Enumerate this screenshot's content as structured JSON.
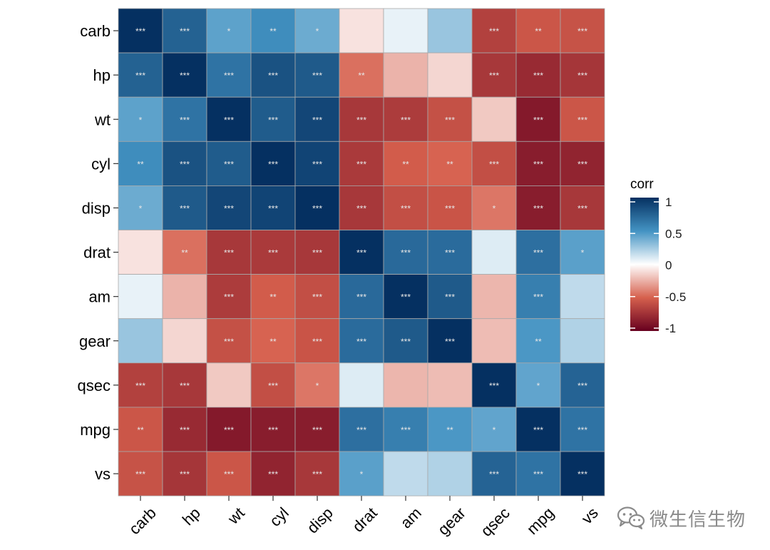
{
  "chart_data": {
    "type": "heatmap",
    "variables": [
      "carb",
      "hp",
      "wt",
      "cyl",
      "disp",
      "drat",
      "am",
      "gear",
      "qsec",
      "mpg",
      "vs"
    ],
    "values": [
      [
        1.0,
        0.75,
        0.43,
        0.53,
        0.39,
        -0.09,
        0.06,
        0.27,
        -0.66,
        -0.55,
        -0.57
      ],
      [
        0.75,
        1.0,
        0.66,
        0.83,
        0.79,
        -0.45,
        -0.24,
        -0.13,
        -0.71,
        -0.78,
        -0.72
      ],
      [
        0.43,
        0.66,
        1.0,
        0.78,
        0.89,
        -0.71,
        -0.69,
        -0.58,
        -0.17,
        -0.87,
        -0.55
      ],
      [
        0.53,
        0.83,
        0.78,
        1.0,
        0.9,
        -0.7,
        -0.52,
        -0.49,
        -0.59,
        -0.85,
        -0.81
      ],
      [
        0.39,
        0.79,
        0.89,
        0.9,
        1.0,
        -0.71,
        -0.59,
        -0.56,
        -0.43,
        -0.85,
        -0.71
      ],
      [
        -0.09,
        -0.45,
        -0.71,
        -0.7,
        -0.71,
        1.0,
        0.71,
        0.7,
        0.09,
        0.68,
        0.44
      ],
      [
        0.06,
        -0.24,
        -0.69,
        -0.52,
        -0.59,
        0.71,
        1.0,
        0.79,
        -0.23,
        0.6,
        0.17
      ],
      [
        0.27,
        -0.13,
        -0.58,
        -0.49,
        -0.56,
        0.7,
        0.79,
        1.0,
        -0.21,
        0.48,
        0.21
      ],
      [
        -0.66,
        -0.71,
        -0.17,
        -0.59,
        -0.43,
        0.09,
        -0.23,
        -0.21,
        1.0,
        0.42,
        0.74
      ],
      [
        -0.55,
        -0.78,
        -0.87,
        -0.85,
        -0.85,
        0.68,
        0.6,
        0.48,
        0.42,
        1.0,
        0.66
      ],
      [
        -0.57,
        -0.72,
        -0.55,
        -0.81,
        -0.71,
        0.44,
        0.17,
        0.21,
        0.74,
        0.66,
        1.0
      ]
    ],
    "significance": [
      [
        "***",
        "***",
        "*",
        "**",
        "*",
        "",
        "",
        "",
        "***",
        "**",
        "***"
      ],
      [
        "***",
        "***",
        "***",
        "***",
        "***",
        "**",
        "",
        "",
        "***",
        "***",
        "***"
      ],
      [
        "*",
        "***",
        "***",
        "***",
        "***",
        "***",
        "***",
        "***",
        "",
        "***",
        "***"
      ],
      [
        "**",
        "***",
        "***",
        "***",
        "***",
        "***",
        "**",
        "**",
        "***",
        "***",
        "***"
      ],
      [
        "*",
        "***",
        "***",
        "***",
        "***",
        "***",
        "***",
        "***",
        "*",
        "***",
        "***"
      ],
      [
        "",
        "**",
        "***",
        "***",
        "***",
        "***",
        "***",
        "***",
        "",
        "***",
        "*"
      ],
      [
        "",
        "",
        "***",
        "**",
        "***",
        "***",
        "***",
        "***",
        "",
        "***",
        ""
      ],
      [
        "",
        "",
        "***",
        "**",
        "***",
        "***",
        "***",
        "***",
        "",
        "**",
        ""
      ],
      [
        "***",
        "***",
        "",
        "***",
        "*",
        "",
        "",
        "",
        "***",
        "*",
        "***"
      ],
      [
        "**",
        "***",
        "***",
        "***",
        "***",
        "***",
        "***",
        "**",
        "*",
        "***",
        "***"
      ],
      [
        "***",
        "***",
        "***",
        "***",
        "***",
        "*",
        "",
        "",
        "***",
        "***",
        "***"
      ]
    ],
    "xlabel": "",
    "ylabel": "",
    "legend": {
      "title": "corr",
      "position": "right",
      "ticks": [
        1,
        0.5,
        0,
        -0.5,
        -1
      ],
      "tick_labels": [
        "1",
        "0.5",
        "0",
        "-0.5",
        "-1"
      ],
      "colors": {
        "low": "#67001f",
        "low_mid": "#d6604d",
        "mid": "#ffffff",
        "high_mid": "#4393c3",
        "high": "#053061"
      }
    }
  },
  "watermark": {
    "text": "微生信生物",
    "icon": "wechat-icon"
  }
}
